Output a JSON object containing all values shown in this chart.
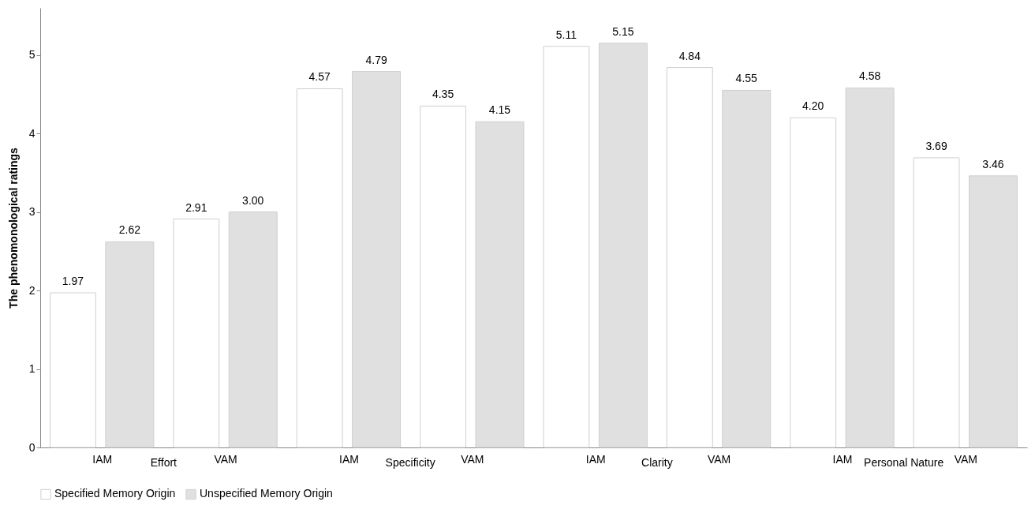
{
  "chart_data": {
    "type": "bar",
    "ylabel": "The phenomonological ratings",
    "categories": [
      "IAM",
      "VAM",
      "IAM",
      "VAM",
      "IAM",
      "VAM",
      "IAM",
      "VAM"
    ],
    "series": [
      {
        "name": "Specified Memory Origin",
        "color": "#ffffff",
        "values": [
          1.97,
          2.91,
          4.57,
          4.35,
          5.11,
          4.84,
          4.2,
          3.69
        ],
        "value_labels": [
          "1.97",
          "2.91",
          "4.57",
          "4.35",
          "5.11",
          "4.84",
          "4.20",
          "3.69"
        ]
      },
      {
        "name": "Unspecified Memory Origin",
        "color": "#e0e0e0",
        "values": [
          2.62,
          3.0,
          4.79,
          4.15,
          5.15,
          4.55,
          4.58,
          3.46
        ],
        "value_labels": [
          "2.62",
          "3.00",
          "4.79",
          "4.15",
          "5.15",
          "4.55",
          "4.58",
          "3.46"
        ]
      }
    ],
    "annotations": [
      "Effort",
      "Specificity",
      "Clarity",
      "Personal Nature"
    ],
    "ylim": [
      0,
      5.6
    ],
    "yticks": [
      0,
      1,
      2,
      3,
      4,
      5
    ],
    "grid": false,
    "legend": "bottom"
  }
}
